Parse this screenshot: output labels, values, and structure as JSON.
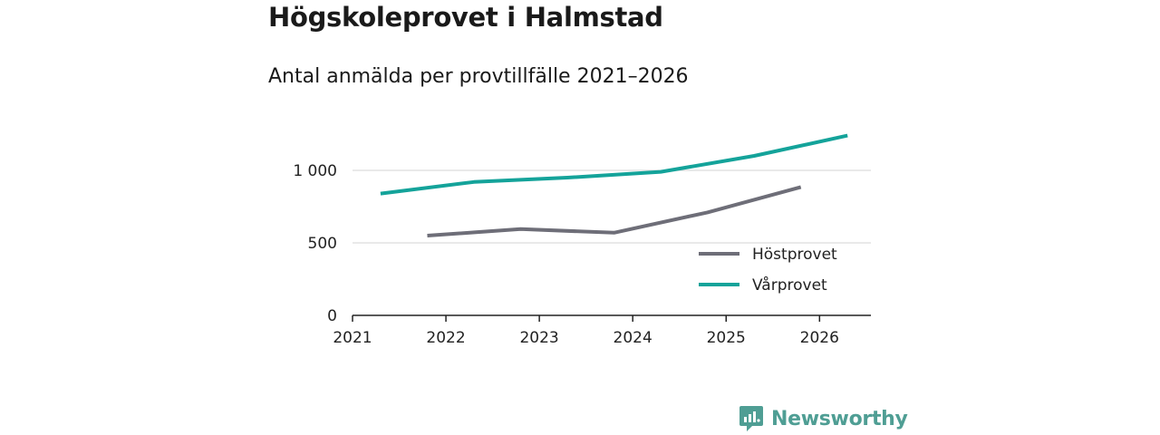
{
  "title": "Högskoleprovet i Halmstad",
  "subtitle": "Antal anmälda per provtillfälle 2021–2026",
  "brand": {
    "name": "Newsworthy",
    "icon": "newsworthy-logo-icon",
    "color": "#4f9e94"
  },
  "chart_data": {
    "type": "line",
    "title": "Högskoleprovet i Halmstad",
    "subtitle": "Antal anmälda per provtillfälle 2021–2026",
    "xlabel": "",
    "ylabel": "",
    "x_ticks": [
      "2021",
      "2022",
      "2023",
      "2024",
      "2025",
      "2026"
    ],
    "y_ticks": [
      {
        "value": 0,
        "label": "0"
      },
      {
        "value": 500,
        "label": "500"
      },
      {
        "value": 1000,
        "label": "1 000"
      }
    ],
    "xlim": [
      2021,
      2026.55
    ],
    "ylim": [
      0,
      1300
    ],
    "grid": true,
    "legend_position": "bottom-right",
    "series": [
      {
        "name": "Höstprovet",
        "color": "#6e6e78",
        "x": [
          2021.8,
          2022.8,
          2023.8,
          2024.8,
          2025.8
        ],
        "values": [
          550,
          595,
          570,
          710,
          885
        ]
      },
      {
        "name": "Vårprovet",
        "color": "#14a39a",
        "x": [
          2021.3,
          2022.3,
          2023.3,
          2024.3,
          2025.3,
          2026.3
        ],
        "values": [
          840,
          920,
          950,
          990,
          1100,
          1240
        ]
      }
    ]
  }
}
